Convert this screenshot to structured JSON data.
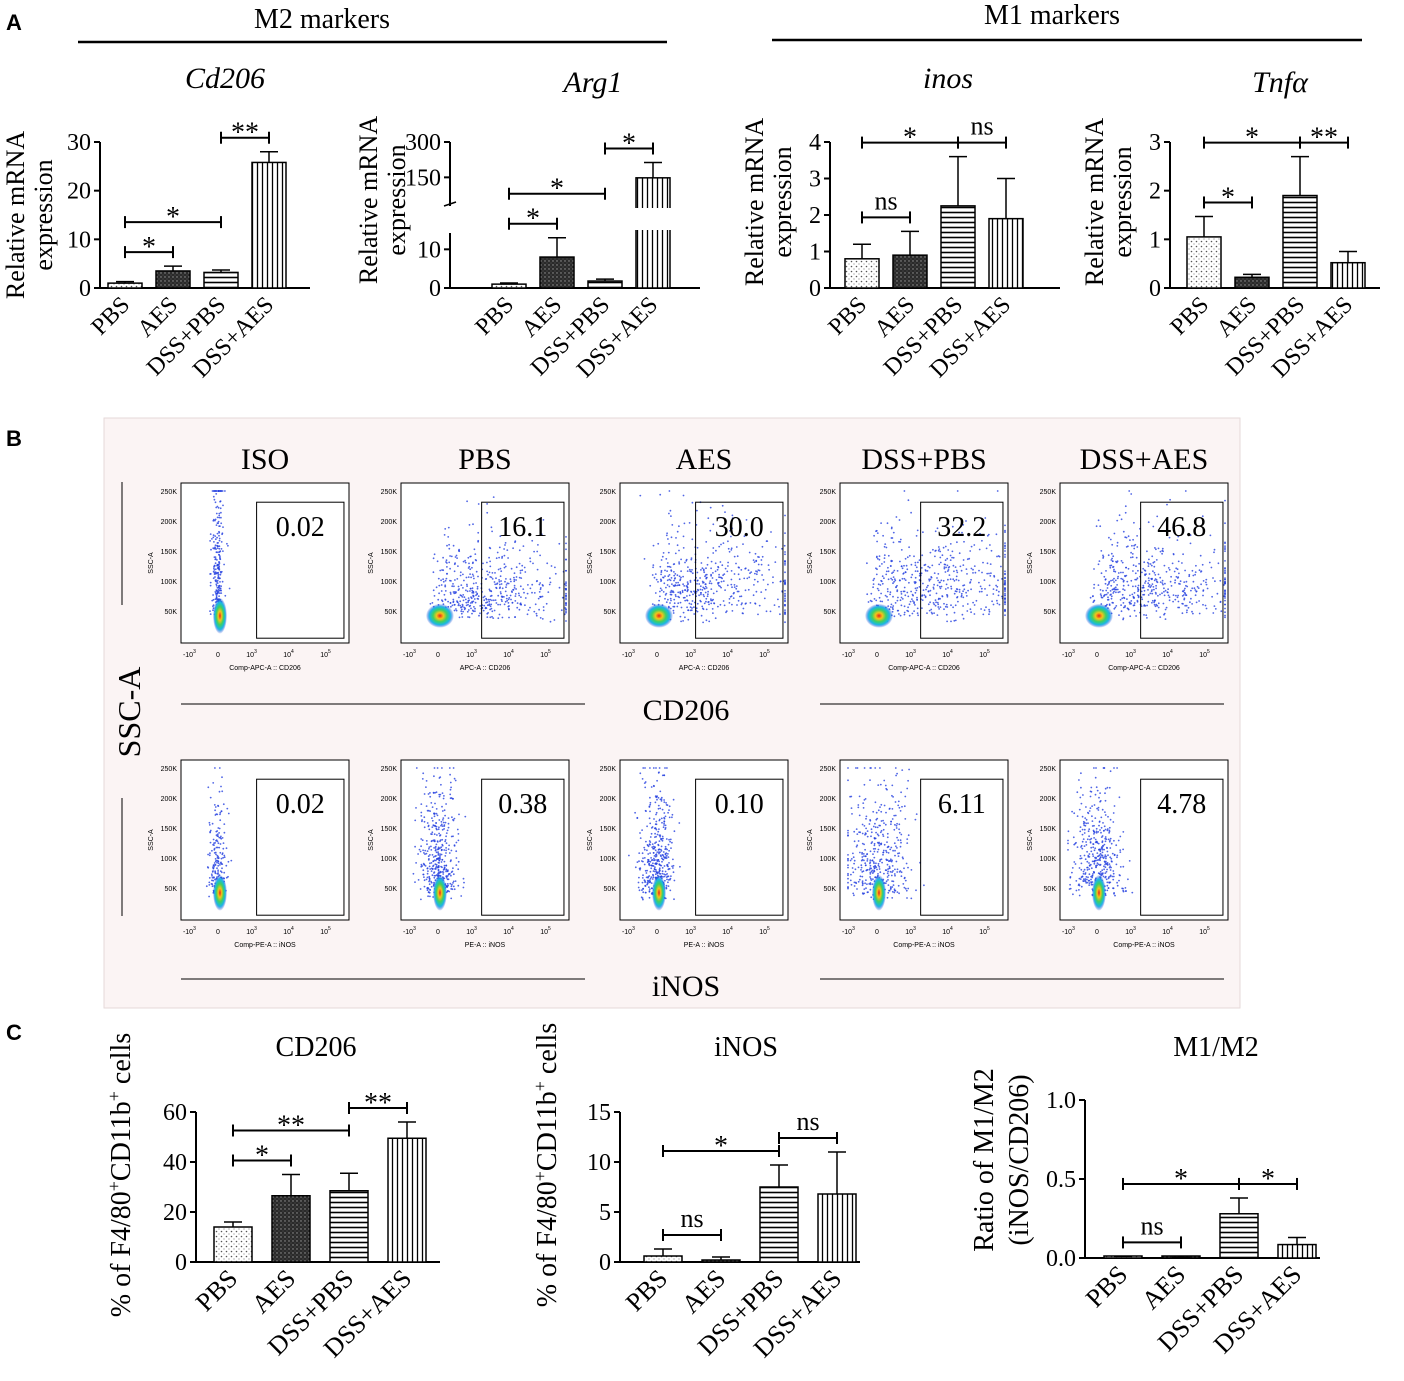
{
  "panelA": {
    "letter": "A",
    "group_m2": "M2 markers",
    "group_m1": "M1 markers",
    "ylabel": [
      "Relative mRNA",
      "expression"
    ]
  },
  "panelB": {
    "letter": "B",
    "ylabel": "SSC-A",
    "x_caption_row1": "CD206",
    "x_caption_row2": "iNOS",
    "column_titles": [
      "ISO",
      "PBS",
      "AES",
      "DSS+PBS",
      "DSS+AES"
    ],
    "y_ticks": [
      "250K",
      "200K",
      "150K",
      "100K",
      "50K",
      "0"
    ],
    "x_ticks": [
      "-10",
      "0",
      "10",
      "10",
      "10"
    ],
    "x_tick_exps": [
      "3",
      "",
      "3",
      "4",
      "5"
    ],
    "plot_ylabel": "SSC-A",
    "row1_xlabels": [
      "Comp-APC-A :: CD206",
      "APC-A :: CD206",
      "APC-A :: CD206",
      "Comp-APC-A :: CD206",
      "Comp-APC-A :: CD206"
    ],
    "row2_xlabels": [
      "Comp-PE-A :: iNOS",
      "PE-A :: iNOS",
      "PE-A :: iNOS",
      "Comp-PE-A :: iNOS",
      "Comp-PE-A :: iNOS"
    ],
    "row1_values": [
      "0.02",
      "16.1",
      "30.0",
      "32.2",
      "46.8"
    ],
    "row2_values": [
      "0.02",
      "0.38",
      "0.10",
      "6.11",
      "4.78"
    ]
  },
  "panelC": {
    "letter": "C",
    "ylabel_cells": "% of F4/80",
    "ylabel_sup1": "+",
    "ylabel_mid": "CD11b",
    "ylabel_sup2": "+",
    "ylabel_end": " cells",
    "ratio_ylabel": [
      "Ratio of M1/M2",
      "(iNOS/CD206)"
    ]
  },
  "chart_data": [
    {
      "id": "cd206_mrna",
      "type": "bar",
      "title": "Cd206",
      "title_italic": true,
      "categories": [
        "PBS",
        "AES",
        "DSS+PBS",
        "DSS+AES"
      ],
      "values": [
        1,
        3.5,
        3.2,
        25.8
      ],
      "errors": [
        0.3,
        1.0,
        0.5,
        2.2
      ],
      "patterns": [
        "dots",
        "dark",
        "hlines",
        "vlines"
      ],
      "ylim": [
        0,
        30
      ],
      "yticks": [
        "0",
        "10",
        "20",
        "30"
      ],
      "yticks_vals": [
        0,
        10,
        20,
        30
      ],
      "ylabel": "Relative mRNA expression",
      "sig": [
        {
          "from": 0,
          "to": 1,
          "label": "*"
        },
        {
          "from": 0,
          "to": 2,
          "label": "*"
        },
        {
          "from": 2,
          "to": 3,
          "label": "**"
        }
      ]
    },
    {
      "id": "arg1_mrna",
      "type": "bar",
      "title": "Arg1",
      "title_italic": true,
      "categories": [
        "PBS",
        "AES",
        "DSS+PBS",
        "DSS+AES"
      ],
      "values": [
        1,
        8,
        1.8,
        148
      ],
      "errors": [
        0.3,
        5,
        0.5,
        65
      ],
      "patterns": [
        "dots",
        "dark",
        "hlines",
        "vlines"
      ],
      "y_axis_break": [
        15,
        20
      ],
      "yticks": [
        "0",
        "10",
        "150",
        "300"
      ],
      "yticks_vals": [
        0,
        10,
        150,
        300
      ],
      "ylabel": "Relative mRNA expression",
      "sig": [
        {
          "from": 0,
          "to": 1,
          "label": "*"
        },
        {
          "from": 0,
          "to": 2,
          "label": "*"
        },
        {
          "from": 2,
          "to": 3,
          "label": "*"
        }
      ]
    },
    {
      "id": "inos_mrna",
      "type": "bar",
      "title": "inos",
      "title_italic": true,
      "categories": [
        "PBS",
        "AES",
        "DSS+PBS",
        "DSS+AES"
      ],
      "values": [
        0.8,
        0.9,
        2.25,
        1.9
      ],
      "errors": [
        0.4,
        0.65,
        1.35,
        1.1
      ],
      "patterns": [
        "dots",
        "dark",
        "hlines",
        "vlines"
      ],
      "ylim": [
        0,
        4
      ],
      "yticks": [
        "0",
        "1",
        "2",
        "3",
        "4"
      ],
      "yticks_vals": [
        0,
        1,
        2,
        3,
        4
      ],
      "ylabel": "Relative mRNA expression",
      "sig": [
        {
          "from": 0,
          "to": 1,
          "label": "ns"
        },
        {
          "from": 0,
          "to": 2,
          "label": "*"
        },
        {
          "from": 2,
          "to": 3,
          "label": "ns"
        }
      ]
    },
    {
      "id": "tnfa_mrna",
      "type": "bar",
      "title": "Tnfα",
      "title_italic": true,
      "categories": [
        "PBS",
        "AES",
        "DSS+PBS",
        "DSS+AES"
      ],
      "values": [
        1.05,
        0.22,
        1.9,
        0.52
      ],
      "errors": [
        0.42,
        0.06,
        0.8,
        0.23
      ],
      "patterns": [
        "dots",
        "dark",
        "hlines",
        "vlines"
      ],
      "ylim": [
        0,
        3
      ],
      "yticks": [
        "0",
        "1",
        "2",
        "3"
      ],
      "yticks_vals": [
        0,
        1,
        2,
        3
      ],
      "ylabel": "Relative mRNA expression",
      "sig": [
        {
          "from": 0,
          "to": 1,
          "label": "*"
        },
        {
          "from": 0,
          "to": 2,
          "label": "*"
        },
        {
          "from": 2,
          "to": 3,
          "label": "**"
        }
      ]
    },
    {
      "id": "cd206_flow",
      "type": "bar",
      "title": "CD206",
      "title_italic": false,
      "categories": [
        "PBS",
        "AES",
        "DSS+PBS",
        "DSS+AES"
      ],
      "values": [
        14,
        26.5,
        28.5,
        49.5
      ],
      "errors": [
        2,
        8.5,
        7,
        6.5
      ],
      "patterns": [
        "dots",
        "dark",
        "hlines",
        "vlines"
      ],
      "ylim": [
        0,
        60
      ],
      "yticks": [
        "0",
        "20",
        "40",
        "60"
      ],
      "yticks_vals": [
        0,
        20,
        40,
        60
      ],
      "ylabel": "% of F4/80+CD11b+ cells",
      "sig": [
        {
          "from": 0,
          "to": 1,
          "label": "*"
        },
        {
          "from": 0,
          "to": 2,
          "label": "**"
        },
        {
          "from": 2,
          "to": 3,
          "label": "**"
        }
      ]
    },
    {
      "id": "inos_flow",
      "type": "bar",
      "title": "iNOS",
      "title_italic": false,
      "categories": [
        "PBS",
        "AES",
        "DSS+PBS",
        "DSS+AES"
      ],
      "values": [
        0.6,
        0.15,
        7.5,
        6.8
      ],
      "errors": [
        0.7,
        0.35,
        2.2,
        4.2
      ],
      "patterns": [
        "dots",
        "dark",
        "hlines",
        "vlines"
      ],
      "ylim": [
        0,
        15
      ],
      "yticks": [
        "0",
        "5",
        "10",
        "15"
      ],
      "yticks_vals": [
        0,
        5,
        10,
        15
      ],
      "ylabel": "% of F4/80+CD11b+ cells",
      "sig": [
        {
          "from": 0,
          "to": 1,
          "label": "ns"
        },
        {
          "from": 0,
          "to": 2,
          "label": "*"
        },
        {
          "from": 2,
          "to": 3,
          "label": "ns"
        }
      ]
    },
    {
      "id": "ratio",
      "type": "bar",
      "title": "M1/M2",
      "title_italic": false,
      "categories": [
        "PBS",
        "AES",
        "DSS+PBS",
        "DSS+AES"
      ],
      "values": [
        0.005,
        0.002,
        0.28,
        0.085
      ],
      "errors": [
        0.005,
        0.002,
        0.1,
        0.045
      ],
      "patterns": [
        "dots",
        "dark",
        "hlines",
        "vlines"
      ],
      "ylim": [
        0,
        1
      ],
      "yticks": [
        "0.0",
        "0.5",
        "1.0"
      ],
      "yticks_vals": [
        0,
        0.5,
        1
      ],
      "ylabel": "Ratio of M1/M2 (iNOS/CD206)",
      "sig": [
        {
          "from": 0,
          "to": 1,
          "label": "ns"
        },
        {
          "from": 0,
          "to": 2,
          "label": "*"
        },
        {
          "from": 2,
          "to": 3,
          "label": "*"
        }
      ]
    }
  ]
}
